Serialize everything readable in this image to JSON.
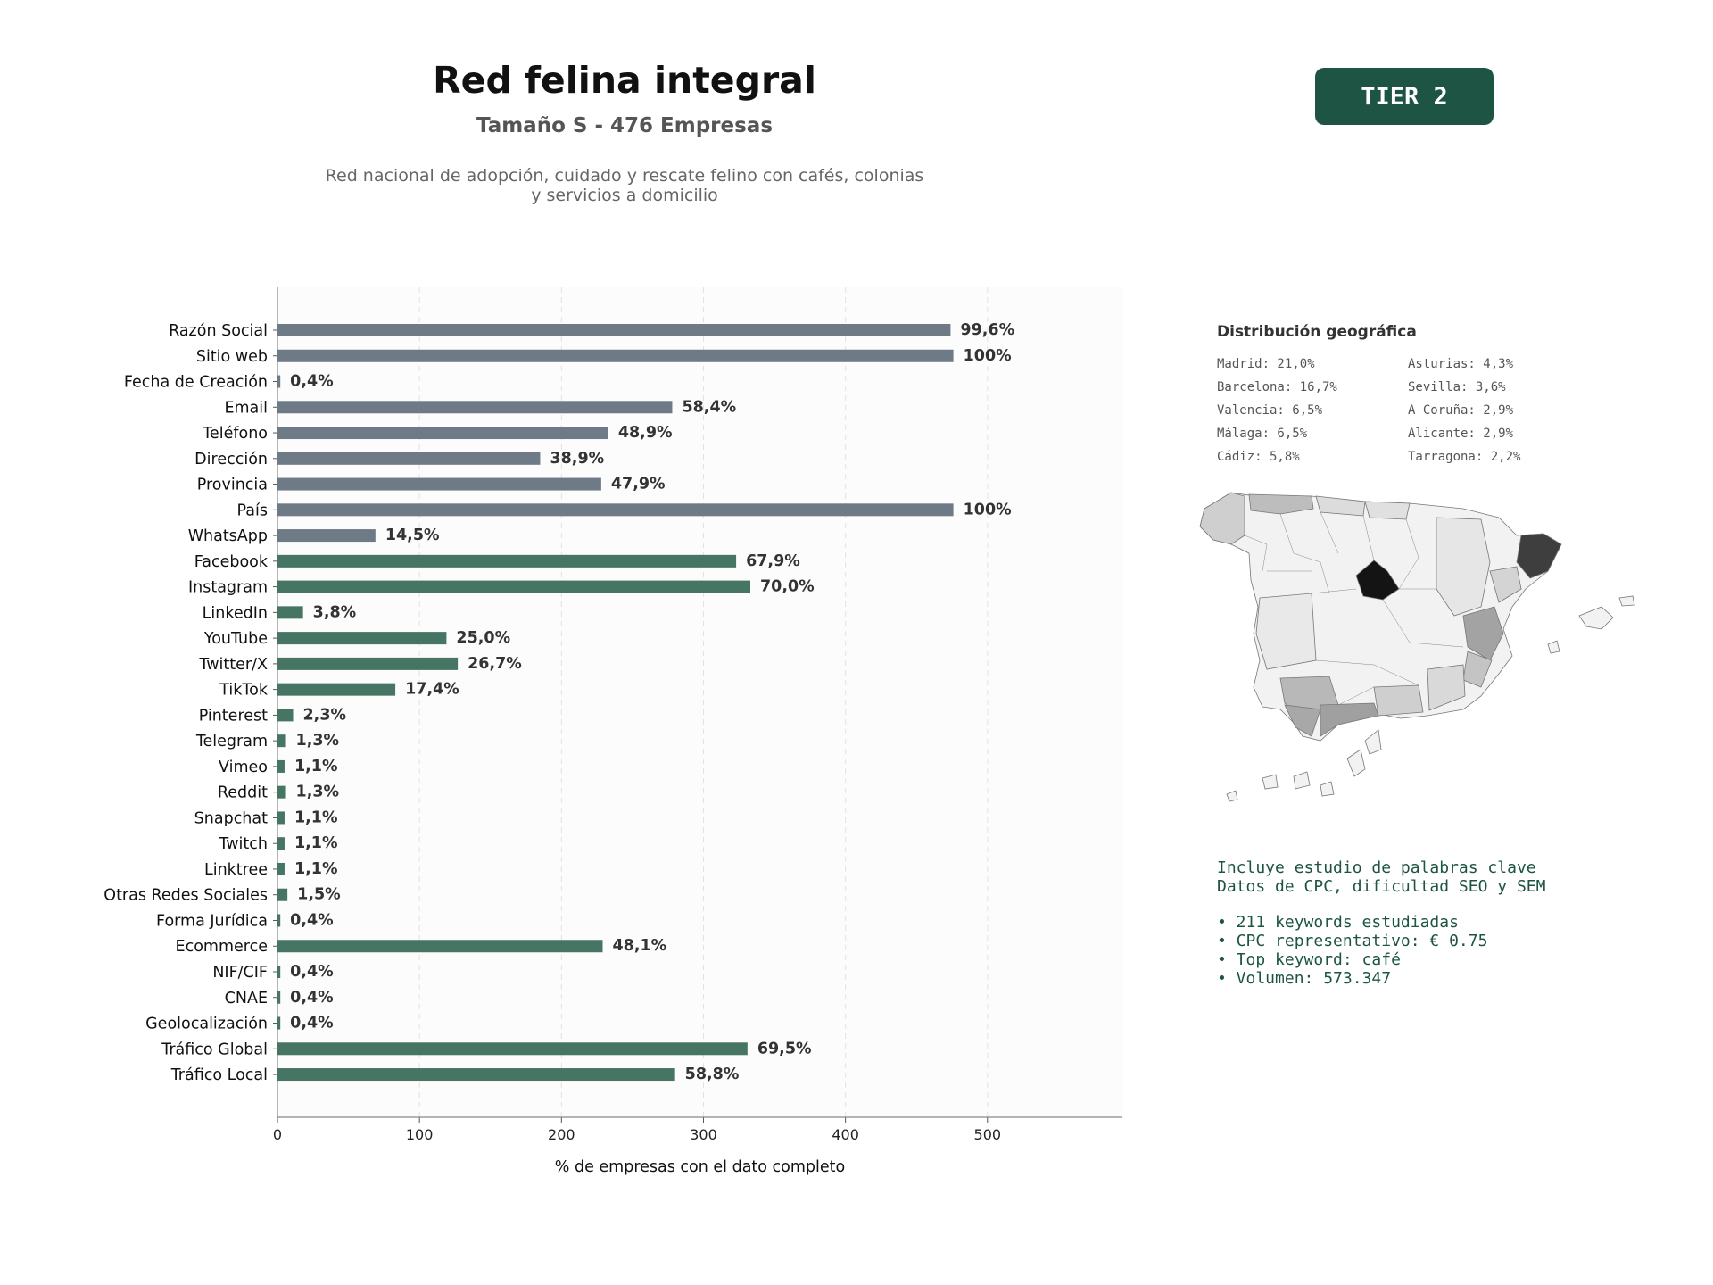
{
  "header": {
    "title": "Red felina integral",
    "subtitle": "Tamaño S - 476 Empresas",
    "description_line1": "Red nacional de adopción, cuidado y rescate felino con cafés, colonias",
    "description_line2": "y servicios a domicilio",
    "badge": "TIER 2"
  },
  "chart_data": {
    "type": "bar",
    "orientation": "horizontal",
    "xlabel": "% de empresas con el dato completo",
    "xlim": [
      0,
      595
    ],
    "xticks": [
      0,
      100,
      200,
      300,
      400,
      500
    ],
    "grid": "vertical dashed",
    "categories": [
      "Razón Social",
      "Sitio web",
      "Fecha de Creación",
      "Email",
      "Teléfono",
      "Dirección",
      "Provincia",
      "País",
      "WhatsApp",
      "Facebook",
      "Instagram",
      "LinkedIn",
      "YouTube",
      "Twitter/X",
      "TikTok",
      "Pinterest",
      "Telegram",
      "Vimeo",
      "Reddit",
      "Snapchat",
      "Twitch",
      "Linktree",
      "Otras Redes Sociales",
      "Forma Jurídica",
      "Ecommerce",
      "NIF/CIF",
      "CNAE",
      "Geolocalización",
      "Tráfico Global",
      "Tráfico Local"
    ],
    "values": [
      474,
      476,
      2,
      278,
      233,
      185,
      228,
      476,
      69,
      323,
      333,
      18,
      119,
      127,
      83,
      11,
      6,
      5,
      6,
      5,
      5,
      5,
      7,
      2,
      229,
      2,
      2,
      2,
      331,
      280
    ],
    "labels": [
      "99,6%",
      "100%",
      "0,4%",
      "58,4%",
      "48,9%",
      "38,9%",
      "47,9%",
      "100%",
      "14,5%",
      "67,9%",
      "70,0%",
      "3,8%",
      "25,0%",
      "26,7%",
      "17,4%",
      "2,3%",
      "1,3%",
      "1,1%",
      "1,3%",
      "1,1%",
      "1,1%",
      "1,1%",
      "1,5%",
      "0,4%",
      "48,1%",
      "0,4%",
      "0,4%",
      "0,4%",
      "69,5%",
      "58,8%"
    ],
    "groups": [
      "gray",
      "gray",
      "gray",
      "gray",
      "gray",
      "gray",
      "gray",
      "gray",
      "gray",
      "green",
      "green",
      "green",
      "green",
      "green",
      "green",
      "green",
      "green",
      "green",
      "green",
      "green",
      "green",
      "green",
      "green",
      "green",
      "green",
      "green",
      "green",
      "green",
      "green",
      "green"
    ],
    "colors": {
      "gray": "#6e7a85",
      "green": "#467563"
    }
  },
  "geo": {
    "title": "Distribución geográfica",
    "items": [
      "Madrid: 21,0%",
      "Asturias: 4,3%",
      "Barcelona: 16,7%",
      "Sevilla: 3,6%",
      "Valencia: 6,5%",
      "A Coruña: 2,9%",
      "Málaga: 6,5%",
      "Alicante: 2,9%",
      "Cádiz: 5,8%",
      "Tarragona: 2,2%"
    ]
  },
  "keywords": {
    "line1": "Incluye estudio de palabras clave",
    "line2": "Datos de CPC, dificultad SEO y SEM",
    "bullet1": "• 211 keywords estudiadas",
    "bullet2": "• CPC representativo: € 0.75",
    "bullet3": "• Top keyword: café",
    "bullet4": "• Volumen: 573.347"
  }
}
